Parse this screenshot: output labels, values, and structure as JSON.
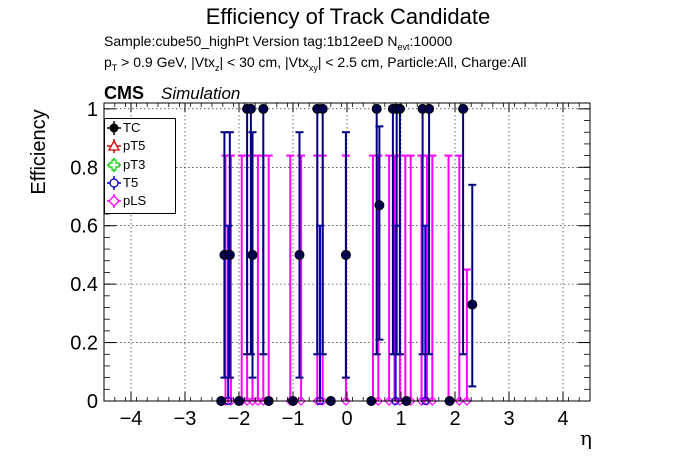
{
  "header": {
    "title": "Efficiency of Track Candidate",
    "sample_text": "Sample:cube50_highPt   Version tag:1b12eeD  N",
    "nevt_sub": "evt",
    "nevt_value": ":10000",
    "cut_text_a": "p",
    "cut_sub_a": "T",
    "cut_text_b": " > 0.9 GeV, |Vtx",
    "cut_sub_b": "z",
    "cut_text_c": "| < 30 cm, |Vtx",
    "cut_sub_c": "xy",
    "cut_text_d": "| < 2.5 cm, Particle:All, Charge:All",
    "cms_label": "CMS",
    "simulation_label": "Simulation"
  },
  "legend": {
    "entries": [
      {
        "label": "TC",
        "color": "#000000",
        "marker": "filled-circle"
      },
      {
        "label": "pT5",
        "color": "#cc0000",
        "marker": "open-triangle"
      },
      {
        "label": "pT3",
        "color": "#00cc00",
        "marker": "open-cross"
      },
      {
        "label": "T5",
        "color": "#0000cc",
        "marker": "open-circle"
      },
      {
        "label": "pLS",
        "color": "#ff00ff",
        "marker": "open-diamond"
      }
    ]
  },
  "chart_data": {
    "type": "scatter",
    "title": "Efficiency of Track Candidate",
    "xlabel": "η",
    "ylabel": "Efficiency",
    "xlim": [
      -4.5,
      4.5
    ],
    "ylim": [
      0,
      1.02
    ],
    "x_ticks": [
      "−4",
      "−3",
      "−2",
      "−1",
      "0",
      "1",
      "2",
      "3",
      "4"
    ],
    "x_tick_values": [
      -4,
      -3,
      -2,
      -1,
      0,
      1,
      2,
      3,
      4
    ],
    "y_ticks": [
      "0",
      "0.2",
      "0.4",
      "0.6",
      "0.8",
      "1"
    ],
    "y_tick_values": [
      0,
      0.2,
      0.4,
      0.6,
      0.8,
      1
    ],
    "grid": true,
    "legend_position": "top-left",
    "series": [
      {
        "name": "TC",
        "color": "#000080",
        "points": [
          {
            "x": -2.27,
            "y": 0.5,
            "lo": 0.08,
            "hi": 0.92
          },
          {
            "x": -2.17,
            "y": 0.5,
            "lo": 0.08,
            "hi": 0.92
          },
          {
            "x": -1.85,
            "y": 1.0,
            "lo": 0.16,
            "hi": 1.0
          },
          {
            "x": -1.78,
            "y": 1.0,
            "lo": 0.16,
            "hi": 1.0
          },
          {
            "x": -1.75,
            "y": 0.5,
            "lo": 0.08,
            "hi": 0.92
          },
          {
            "x": -1.55,
            "y": 1.0,
            "lo": 0.16,
            "hi": 1.0
          },
          {
            "x": -0.88,
            "y": 0.5,
            "lo": 0.08,
            "hi": 0.92
          },
          {
            "x": -0.55,
            "y": 1.0,
            "lo": 0.16,
            "hi": 1.0
          },
          {
            "x": -0.45,
            "y": 1.0,
            "lo": 0.16,
            "hi": 1.0
          },
          {
            "x": -0.02,
            "y": 0.5,
            "lo": 0.08,
            "hi": 0.92
          },
          {
            "x": 0.55,
            "y": 1.0,
            "lo": 0.16,
            "hi": 1.0
          },
          {
            "x": 0.6,
            "y": 0.67,
            "lo": 0.21,
            "hi": 0.94
          },
          {
            "x": 0.85,
            "y": 1.0,
            "lo": 0.16,
            "hi": 1.0
          },
          {
            "x": 0.92,
            "y": 1.0,
            "lo": 0.16,
            "hi": 1.0
          },
          {
            "x": 0.98,
            "y": 1.0,
            "lo": 0.16,
            "hi": 1.0
          },
          {
            "x": 1.4,
            "y": 1.0,
            "lo": 0.16,
            "hi": 1.0
          },
          {
            "x": 1.52,
            "y": 1.0,
            "lo": 0.16,
            "hi": 1.0
          },
          {
            "x": 2.15,
            "y": 1.0,
            "lo": 0.16,
            "hi": 1.0
          },
          {
            "x": 2.32,
            "y": 0.33,
            "lo": 0.05,
            "hi": 0.74
          },
          {
            "x": -2.33,
            "y": 0,
            "lo": 0,
            "hi": 0
          },
          {
            "x": -2.0,
            "y": 0,
            "lo": 0,
            "hi": 0
          },
          {
            "x": -1.45,
            "y": 0,
            "lo": 0,
            "hi": 0
          },
          {
            "x": -1.0,
            "y": 0,
            "lo": 0,
            "hi": 0
          },
          {
            "x": -0.3,
            "y": 0,
            "lo": 0,
            "hi": 0
          },
          {
            "x": 0.45,
            "y": 0,
            "lo": 0,
            "hi": 0
          },
          {
            "x": 1.1,
            "y": 0,
            "lo": 0,
            "hi": 0
          },
          {
            "x": 1.9,
            "y": 0,
            "lo": 0,
            "hi": 0
          }
        ]
      },
      {
        "name": "pLS",
        "color": "#ff00ff",
        "points": [
          {
            "x": -2.25,
            "y": 0,
            "lo": 0,
            "hi": 0.84
          },
          {
            "x": -2.15,
            "y": 0,
            "lo": 0,
            "hi": 0.84
          },
          {
            "x": -1.95,
            "y": 0,
            "lo": 0,
            "hi": 0.84
          },
          {
            "x": -1.85,
            "y": 0,
            "lo": 0,
            "hi": 0.84
          },
          {
            "x": -1.75,
            "y": 0,
            "lo": 0,
            "hi": 0.84
          },
          {
            "x": -1.65,
            "y": 0,
            "lo": 0,
            "hi": 0.84
          },
          {
            "x": -1.55,
            "y": 0,
            "lo": 0,
            "hi": 0.84
          },
          {
            "x": -1.45,
            "y": 0,
            "lo": 0,
            "hi": 0.84
          },
          {
            "x": -1.05,
            "y": 0,
            "lo": 0,
            "hi": 0.84
          },
          {
            "x": -0.85,
            "y": 0,
            "lo": 0,
            "hi": 0.84
          },
          {
            "x": -0.55,
            "y": 0,
            "lo": 0,
            "hi": 0.84
          },
          {
            "x": -0.45,
            "y": 0,
            "lo": 0,
            "hi": 0.84
          },
          {
            "x": -0.02,
            "y": 0,
            "lo": 0,
            "hi": 0.84
          },
          {
            "x": 0.48,
            "y": 0,
            "lo": 0,
            "hi": 0.84
          },
          {
            "x": 0.58,
            "y": 0,
            "lo": 0,
            "hi": 0.84
          },
          {
            "x": 0.78,
            "y": 0,
            "lo": 0,
            "hi": 0.84
          },
          {
            "x": 0.88,
            "y": 0,
            "lo": 0,
            "hi": 0.84
          },
          {
            "x": 0.98,
            "y": 0,
            "lo": 0,
            "hi": 0.84
          },
          {
            "x": 1.08,
            "y": 0,
            "lo": 0,
            "hi": 0.84
          },
          {
            "x": 1.18,
            "y": 0,
            "lo": 0,
            "hi": 0.84
          },
          {
            "x": 1.38,
            "y": 0,
            "lo": 0,
            "hi": 0.84
          },
          {
            "x": 1.48,
            "y": 0,
            "lo": 0,
            "hi": 0.84
          },
          {
            "x": 1.58,
            "y": 0,
            "lo": 0,
            "hi": 0.84
          },
          {
            "x": 1.88,
            "y": 0,
            "lo": 0,
            "hi": 0.84
          },
          {
            "x": 2.08,
            "y": 0,
            "lo": 0,
            "hi": 0.84
          },
          {
            "x": 2.22,
            "y": 0,
            "lo": 0,
            "hi": 0.45
          }
        ]
      },
      {
        "name": "T5",
        "color": "#0000cc",
        "points": [
          {
            "x": -2.2,
            "y": 0,
            "lo": 0,
            "hi": 0.6
          },
          {
            "x": -0.5,
            "y": 0,
            "lo": 0,
            "hi": 0.6
          },
          {
            "x": 0.9,
            "y": 0,
            "lo": 0,
            "hi": 0.6
          },
          {
            "x": 1.45,
            "y": 0,
            "lo": 0,
            "hi": 0.6
          }
        ]
      }
    ]
  }
}
